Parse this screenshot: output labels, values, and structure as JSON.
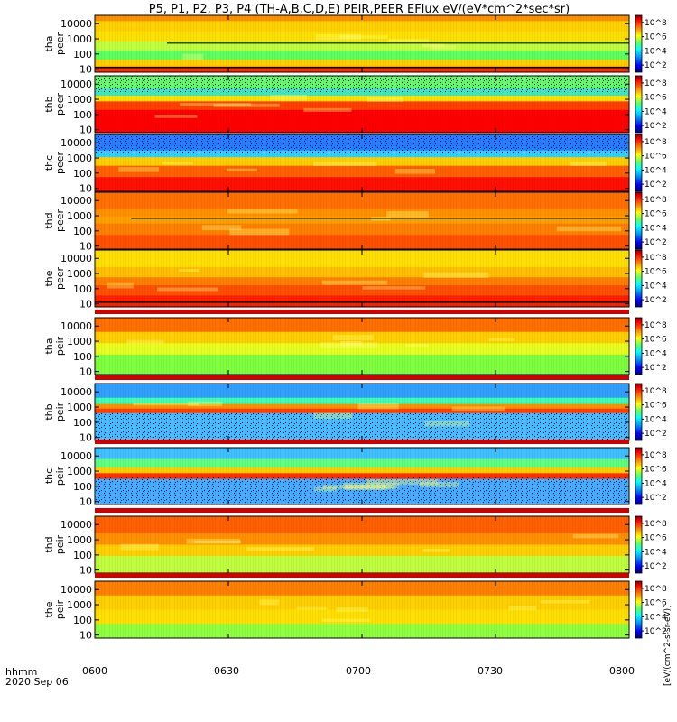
{
  "title": "P5, P1, P2, P3, P4 (TH-A,B,C,D,E) PEIR,PEER EFlux eV/(eV*cm^2*sec*sr)",
  "footer": {
    "time_label": "hhmm",
    "date_label": "2020 Sep 06"
  },
  "colorbar_unit": "[eV/(cm^2-s-sr-eV)]",
  "chart_data": {
    "type": "heatmap",
    "x_ticks": [
      "0600",
      "0630",
      "0700",
      "0730",
      "0800"
    ],
    "x_range": [
      "06:00",
      "08:00"
    ],
    "y_scale": "log",
    "colormap": [
      "#000080",
      "#0000ff",
      "#00a0ff",
      "#00ffff",
      "#60ff60",
      "#ffff00",
      "#ff8000",
      "#ff0000",
      "#800000"
    ],
    "panels": [
      {
        "probe": "tha",
        "species": "peer",
        "y_ticks": [
          "10",
          "100",
          "1000",
          "10000"
        ],
        "cb_ticks": [
          "10^2",
          "10^4",
          "10^6",
          "10^8"
        ]
      },
      {
        "probe": "thb",
        "species": "peer",
        "y_ticks": [
          "10",
          "100",
          "1000",
          "10000"
        ],
        "cb_ticks": [
          "10^2",
          "10^4",
          "10^6",
          "10^8"
        ]
      },
      {
        "probe": "thc",
        "species": "peer",
        "y_ticks": [
          "10",
          "100",
          "1000",
          "10000"
        ],
        "cb_ticks": [
          "10^2",
          "10^4",
          "10^6",
          "10^8"
        ]
      },
      {
        "probe": "thd",
        "species": "peer",
        "y_ticks": [
          "10",
          "100",
          "1000",
          "10000"
        ],
        "cb_ticks": [
          "10^2",
          "10^4",
          "10^6",
          "10^8"
        ]
      },
      {
        "probe": "the",
        "species": "peer",
        "y_ticks": [
          "10",
          "100",
          "1000",
          "10000"
        ],
        "cb_ticks": [
          "10^2",
          "10^4",
          "10^6",
          "10^8"
        ]
      },
      {
        "probe": "tha",
        "species": "peir",
        "y_ticks": [
          "10",
          "100",
          "1000",
          "10000"
        ],
        "cb_ticks": [
          "10^2",
          "10^4",
          "10^6",
          "10^8"
        ]
      },
      {
        "probe": "thb",
        "species": "peir",
        "y_ticks": [
          "10",
          "100",
          "1000",
          "10000"
        ],
        "cb_ticks": [
          "10^2",
          "10^4",
          "10^6",
          "10^8"
        ]
      },
      {
        "probe": "thc",
        "species": "peir",
        "y_ticks": [
          "10",
          "100",
          "1000",
          "10000"
        ],
        "cb_ticks": [
          "10^2",
          "10^4",
          "10^6",
          "10^8"
        ]
      },
      {
        "probe": "thd",
        "species": "peir",
        "y_ticks": [
          "10",
          "100",
          "1000",
          "10000"
        ],
        "cb_ticks": [
          "10^2",
          "10^4",
          "10^6",
          "10^8"
        ]
      },
      {
        "probe": "the",
        "species": "peir",
        "y_ticks": [
          "10",
          "100",
          "1000",
          "10000"
        ],
        "cb_ticks": [
          "10^2",
          "10^4",
          "10^6",
          "10^8"
        ]
      }
    ]
  }
}
